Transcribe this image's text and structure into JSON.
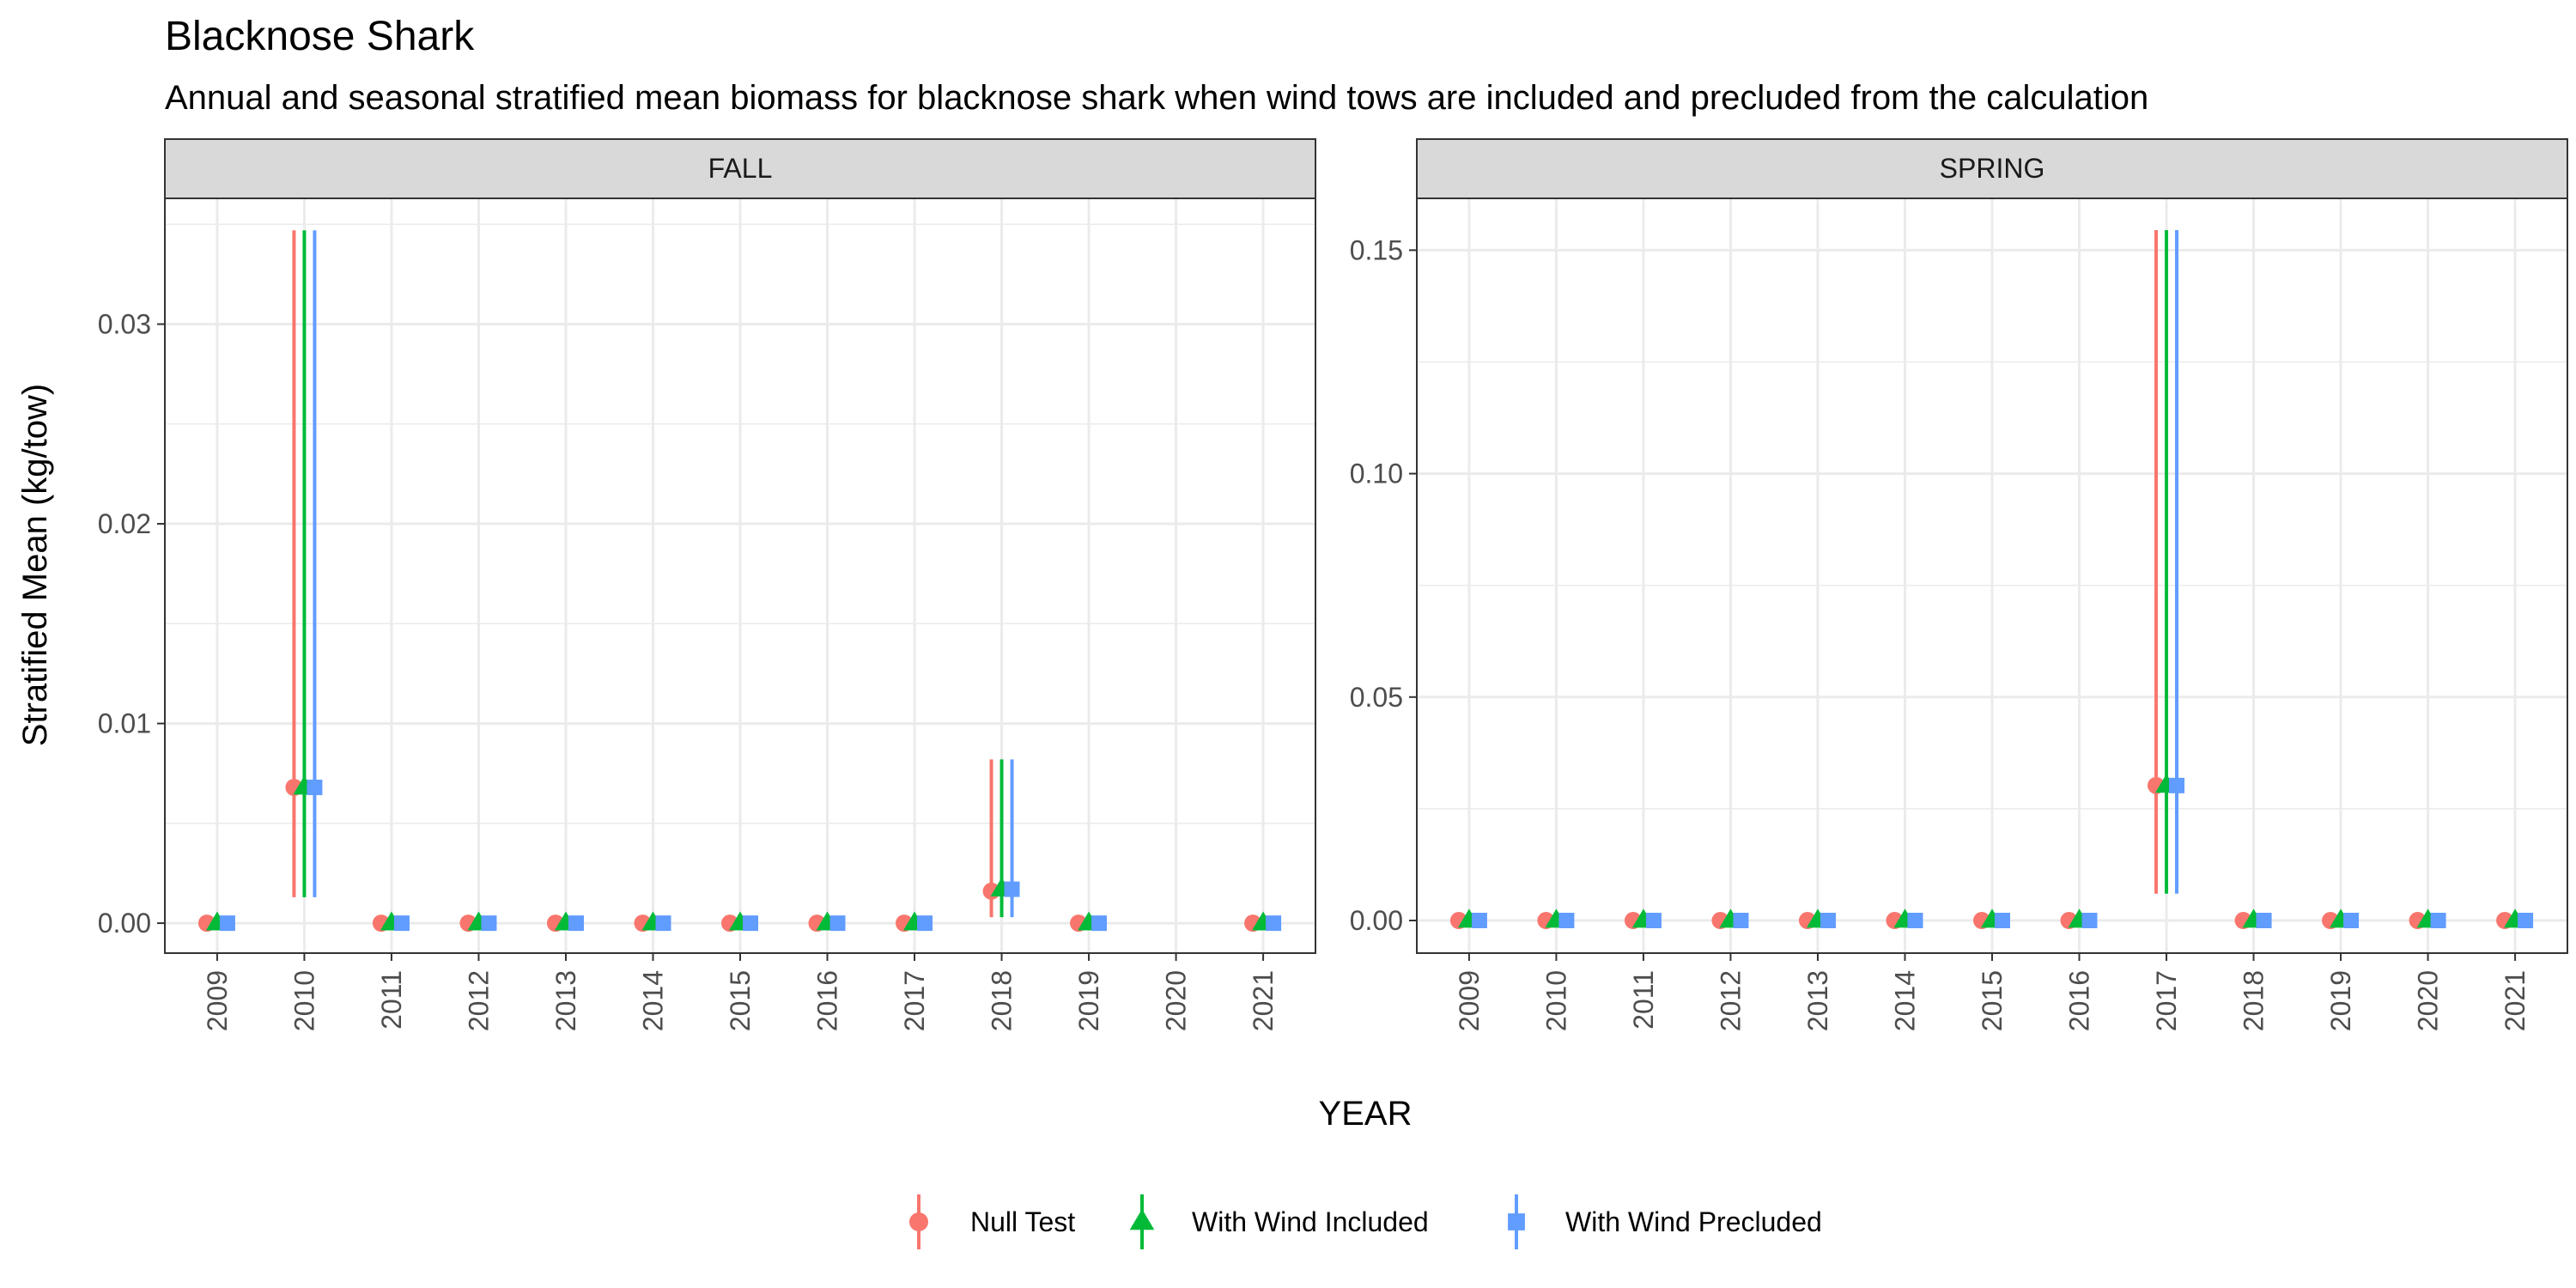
{
  "chart_data": {
    "type": "scatter",
    "title": "Blacknose Shark",
    "subtitle": "Annual and seasonal stratified mean biomass for blacknose shark when wind tows are included and precluded from the calculation",
    "xlabel": "YEAR",
    "ylabel": "Stratified Mean (kg/tow)",
    "legend_position": "bottom",
    "grid": true,
    "categories": [
      "2009",
      "2010",
      "2011",
      "2012",
      "2013",
      "2014",
      "2015",
      "2016",
      "2017",
      "2018",
      "2019",
      "2020",
      "2021"
    ],
    "series_styles": [
      {
        "name": "Null Test",
        "color": "#F8766D",
        "shape": "circle"
      },
      {
        "name": "With Wind Included",
        "color": "#00BA38",
        "shape": "triangle"
      },
      {
        "name": "With Wind Precluded",
        "color": "#619CFF",
        "shape": "square"
      }
    ],
    "panels": [
      {
        "strip": "FALL",
        "ylim": [
          -0.0015,
          0.0363
        ],
        "yticks": [
          0,
          0.01,
          0.02,
          0.03
        ],
        "ytick_labels": [
          "0.00",
          "0.01",
          "0.02",
          "0.03"
        ],
        "series": [
          {
            "name": "Null Test",
            "points": [
              {
                "x": "2009",
                "y": 0
              },
              {
                "x": "2010",
                "y": 0.0068,
                "lo": 0.0013,
                "hi": 0.0347
              },
              {
                "x": "2011",
                "y": 0
              },
              {
                "x": "2012",
                "y": 0
              },
              {
                "x": "2013",
                "y": 0
              },
              {
                "x": "2014",
                "y": 0
              },
              {
                "x": "2015",
                "y": 0
              },
              {
                "x": "2016",
                "y": 0
              },
              {
                "x": "2017",
                "y": 0
              },
              {
                "x": "2018",
                "y": 0.0016,
                "lo": 0.0003,
                "hi": 0.0082
              },
              {
                "x": "2019",
                "y": 0
              },
              {
                "x": "2021",
                "y": 0
              }
            ]
          },
          {
            "name": "With Wind Included",
            "points": [
              {
                "x": "2009",
                "y": 0
              },
              {
                "x": "2010",
                "y": 0.0068,
                "lo": 0.0013,
                "hi": 0.0347
              },
              {
                "x": "2011",
                "y": 0
              },
              {
                "x": "2012",
                "y": 0
              },
              {
                "x": "2013",
                "y": 0
              },
              {
                "x": "2014",
                "y": 0
              },
              {
                "x": "2015",
                "y": 0
              },
              {
                "x": "2016",
                "y": 0
              },
              {
                "x": "2017",
                "y": 0
              },
              {
                "x": "2018",
                "y": 0.0017,
                "lo": 0.0003,
                "hi": 0.0082
              },
              {
                "x": "2019",
                "y": 0
              },
              {
                "x": "2021",
                "y": 0
              }
            ]
          },
          {
            "name": "With Wind Precluded",
            "points": [
              {
                "x": "2009",
                "y": 0
              },
              {
                "x": "2010",
                "y": 0.0068,
                "lo": 0.0013,
                "hi": 0.0347
              },
              {
                "x": "2011",
                "y": 0
              },
              {
                "x": "2012",
                "y": 0
              },
              {
                "x": "2013",
                "y": 0
              },
              {
                "x": "2014",
                "y": 0
              },
              {
                "x": "2015",
                "y": 0
              },
              {
                "x": "2016",
                "y": 0
              },
              {
                "x": "2017",
                "y": 0
              },
              {
                "x": "2018",
                "y": 0.0017,
                "lo": 0.0003,
                "hi": 0.0082
              },
              {
                "x": "2019",
                "y": 0
              },
              {
                "x": "2021",
                "y": 0
              }
            ]
          }
        ]
      },
      {
        "strip": "SPRING",
        "ylim": [
          -0.0073,
          0.1616
        ],
        "yticks": [
          0,
          0.05,
          0.1,
          0.15
        ],
        "ytick_labels": [
          "0.00",
          "0.05",
          "0.10",
          "0.15"
        ],
        "series": [
          {
            "name": "Null Test",
            "points": [
              {
                "x": "2009",
                "y": 0
              },
              {
                "x": "2010",
                "y": 0
              },
              {
                "x": "2011",
                "y": 0
              },
              {
                "x": "2012",
                "y": 0
              },
              {
                "x": "2013",
                "y": 0
              },
              {
                "x": "2014",
                "y": 0
              },
              {
                "x": "2015",
                "y": 0
              },
              {
                "x": "2016",
                "y": 0
              },
              {
                "x": "2017",
                "y": 0.0302,
                "lo": 0.006,
                "hi": 0.1545
              },
              {
                "x": "2018",
                "y": 0
              },
              {
                "x": "2019",
                "y": 0
              },
              {
                "x": "2020",
                "y": 0
              },
              {
                "x": "2021",
                "y": 0
              }
            ]
          },
          {
            "name": "With Wind Included",
            "points": [
              {
                "x": "2009",
                "y": 0
              },
              {
                "x": "2010",
                "y": 0
              },
              {
                "x": "2011",
                "y": 0
              },
              {
                "x": "2012",
                "y": 0
              },
              {
                "x": "2013",
                "y": 0
              },
              {
                "x": "2014",
                "y": 0
              },
              {
                "x": "2015",
                "y": 0
              },
              {
                "x": "2016",
                "y": 0
              },
              {
                "x": "2017",
                "y": 0.0302,
                "lo": 0.006,
                "hi": 0.1545
              },
              {
                "x": "2018",
                "y": 0
              },
              {
                "x": "2019",
                "y": 0
              },
              {
                "x": "2020",
                "y": 0
              },
              {
                "x": "2021",
                "y": 0
              }
            ]
          },
          {
            "name": "With Wind Precluded",
            "points": [
              {
                "x": "2009",
                "y": 0
              },
              {
                "x": "2010",
                "y": 0
              },
              {
                "x": "2011",
                "y": 0
              },
              {
                "x": "2012",
                "y": 0
              },
              {
                "x": "2013",
                "y": 0
              },
              {
                "x": "2014",
                "y": 0
              },
              {
                "x": "2015",
                "y": 0
              },
              {
                "x": "2016",
                "y": 0
              },
              {
                "x": "2017",
                "y": 0.0302,
                "lo": 0.006,
                "hi": 0.1545
              },
              {
                "x": "2018",
                "y": 0
              },
              {
                "x": "2019",
                "y": 0
              },
              {
                "x": "2020",
                "y": 0
              },
              {
                "x": "2021",
                "y": 0
              }
            ]
          }
        ]
      }
    ]
  }
}
